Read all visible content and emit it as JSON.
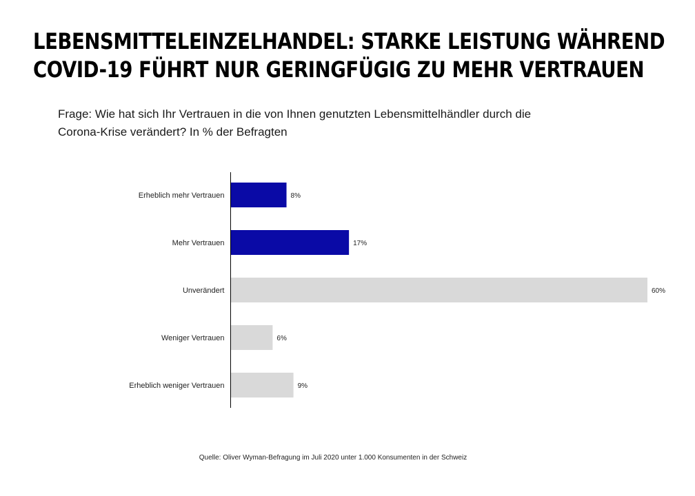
{
  "title_lines": [
    "LEBENSMITTELEINZELHANDEL: STARKE LEISTUNG WÄHREND",
    "COVID-19 FÜHRT NUR GERINGFÜGIG ZU MEHR VERTRAUEN"
  ],
  "subtitle_lines": [
    "Frage: Wie hat sich Ihr Vertrauen in die von Ihnen genutzten Lebensmittelhändler durch die",
    "Corona-Krise verändert? In % der Befragten"
  ],
  "source": "Quelle: Oliver Wyman-Befragung im Juli 2020 unter 1.000 Konsumenten in der Schweiz",
  "colors": {
    "highlight": "#0a0aa6",
    "neutral": "#d9d9d9"
  },
  "chart_data": {
    "type": "bar",
    "orientation": "horizontal",
    "categories": [
      "Erheblich mehr Vertrauen",
      "Mehr Vertrauen",
      "Unverändert",
      "Weniger Vertrauen",
      "Erheblich weniger Vertrauen"
    ],
    "values": [
      8,
      17,
      60,
      6,
      9
    ],
    "value_labels": [
      "8%",
      "17%",
      "60%",
      "6%",
      "9%"
    ],
    "bar_colors": [
      "#0a0aa6",
      "#0a0aa6",
      "#d9d9d9",
      "#d9d9d9",
      "#d9d9d9"
    ],
    "xlim": [
      0,
      60
    ],
    "grid": false,
    "legend": "none"
  }
}
